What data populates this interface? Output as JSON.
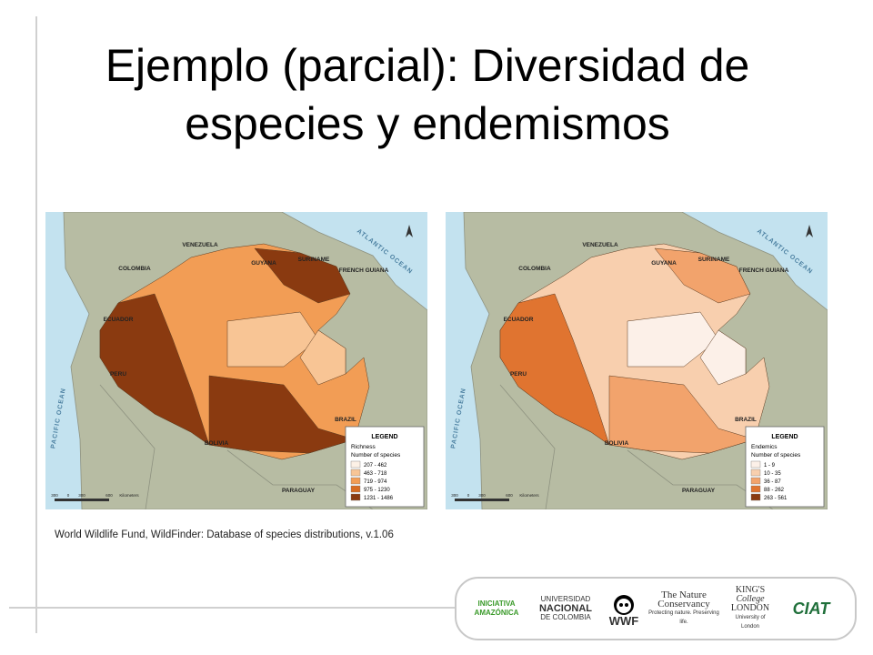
{
  "title": {
    "lines": [
      "Ejemplo (parcial): Diversidad de",
      "especies y endemismos"
    ]
  },
  "maps": [
    {
      "labels": [
        "VENEZUELA",
        "COLOMBIA",
        "GUYANA",
        "SURINAME",
        "FRENCH GUIANA",
        "ATLANTIC OCEAN",
        "ECUADOR",
        "PERU",
        "BRAZIL",
        "BOLIVIA",
        "PARAGUAY",
        "PACIFIC OCEAN"
      ],
      "scale": [
        "300",
        "0",
        "300",
        "600",
        "Kilometers"
      ],
      "legend": {
        "title": "LEGEND",
        "heading": "Richness",
        "subheading": "Number of species",
        "classes": [
          {
            "label": "207 - 462",
            "color": "#fdf1e6"
          },
          {
            "label": "463 - 718",
            "color": "#f8c595"
          },
          {
            "label": "719 - 974",
            "color": "#f29d55"
          },
          {
            "label": "975 - 1230",
            "color": "#d86c22"
          },
          {
            "label": "1231 - 1486",
            "color": "#8a3a10"
          }
        ]
      }
    },
    {
      "labels": [
        "VENEZUELA",
        "COLOMBIA",
        "GUYANA",
        "SURINAME",
        "FRENCH GUIANA",
        "ATLANTIC OCEAN",
        "ECUADOR",
        "PERU",
        "BRAZIL",
        "BOLIVIA",
        "PARAGUAY",
        "PACIFIC OCEAN"
      ],
      "scale": [
        "300",
        "0",
        "300",
        "600",
        "Kilometers"
      ],
      "legend": {
        "title": "LEGEND",
        "heading": "Endemics",
        "subheading": "Number of species",
        "classes": [
          {
            "label": "1 - 9",
            "color": "#fcf0e8"
          },
          {
            "label": "10 - 35",
            "color": "#f8cfae"
          },
          {
            "label": "36 - 87",
            "color": "#f2a36c"
          },
          {
            "label": "88 - 262",
            "color": "#e07430"
          },
          {
            "label": "263 - 561",
            "color": "#8a3a10"
          }
        ]
      }
    }
  ],
  "caption": "World Wildlife Fund, WildFinder: Database of species distributions, v.1.06",
  "logos": {
    "iniciativa": "INICIATIVA AMAZÓNICA",
    "unal": [
      "UNIVERSIDAD",
      "NACIONAL",
      "DE COLOMBIA"
    ],
    "wwf": "WWF",
    "tnc": [
      "The Nature",
      "Conservancy",
      "Protecting nature. Preserving life."
    ],
    "kcl": [
      "KING'S",
      "College",
      "LONDON",
      "University of London"
    ],
    "ciat": "CIAT"
  }
}
